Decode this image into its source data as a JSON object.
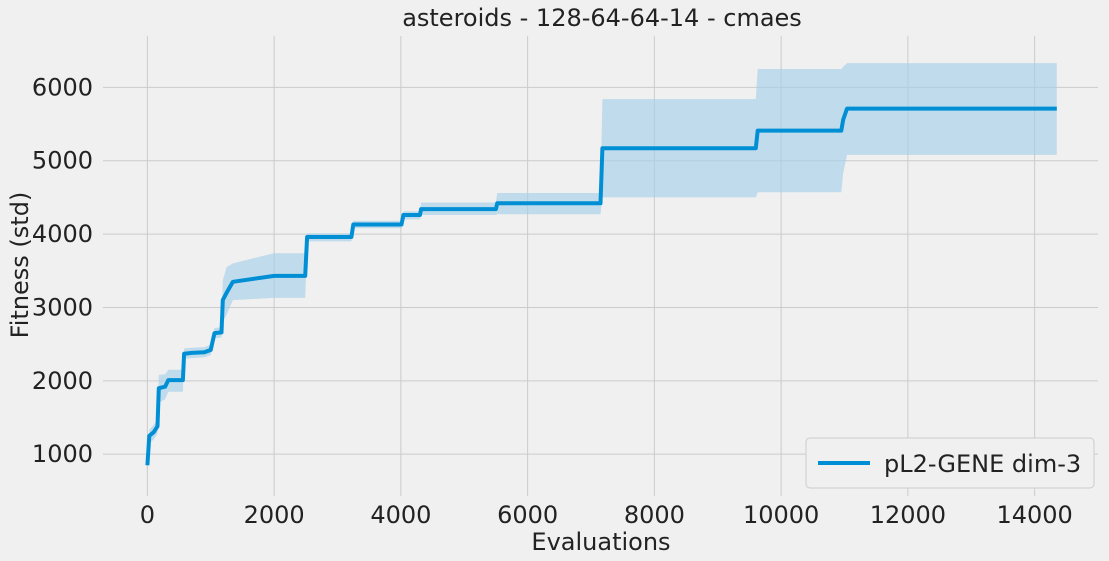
{
  "chart_data": {
    "type": "line",
    "title": "asteroids - 128-64-64-14 - cmaes",
    "xlabel": "Evaluations",
    "ylabel": "Fitness (std)",
    "xlim": [
      -700,
      15000
    ],
    "ylim": [
      430,
      6700
    ],
    "xticks": [
      0,
      2000,
      4000,
      6000,
      8000,
      10000,
      12000,
      14000
    ],
    "yticks": [
      1000,
      2000,
      3000,
      4000,
      5000,
      6000
    ],
    "grid": true,
    "legend_position": "bottom-right",
    "colors": {
      "line": "#008fd5",
      "band": "#a6d0e8",
      "background": "#f0f0f0",
      "grid": "#cbcbcb"
    },
    "series": [
      {
        "name": "pL2-GENE dim-3",
        "shaded": "mean ± std",
        "points": [
          [
            0,
            850,
            850,
            850
          ],
          [
            30,
            1250,
            1150,
            1330
          ],
          [
            100,
            1300,
            1200,
            1400
          ],
          [
            160,
            1380,
            1280,
            1470
          ],
          [
            180,
            1900,
            1700,
            2080
          ],
          [
            280,
            1920,
            1750,
            2090
          ],
          [
            330,
            2010,
            1850,
            2150
          ],
          [
            560,
            2010,
            1850,
            2150
          ],
          [
            580,
            2370,
            2300,
            2440
          ],
          [
            700,
            2380,
            2310,
            2450
          ],
          [
            900,
            2390,
            2320,
            2460
          ],
          [
            1000,
            2420,
            2350,
            2490
          ],
          [
            1060,
            2650,
            2580,
            2720
          ],
          [
            1170,
            2660,
            2590,
            2730
          ],
          [
            1190,
            3100,
            2800,
            3370
          ],
          [
            1250,
            3200,
            2900,
            3550
          ],
          [
            1350,
            3350,
            3100,
            3600
          ],
          [
            2000,
            3430,
            3130,
            3740
          ],
          [
            2490,
            3430,
            3130,
            3740
          ],
          [
            2520,
            3960,
            3900,
            4010
          ],
          [
            3220,
            3960,
            3900,
            4010
          ],
          [
            3250,
            4130,
            4080,
            4180
          ],
          [
            4010,
            4130,
            4080,
            4180
          ],
          [
            4040,
            4260,
            4200,
            4310
          ],
          [
            4300,
            4260,
            4200,
            4310
          ],
          [
            4320,
            4340,
            4260,
            4430
          ],
          [
            5500,
            4340,
            4260,
            4430
          ],
          [
            5520,
            4420,
            4270,
            4560
          ],
          [
            7150,
            4420,
            4270,
            4560
          ],
          [
            7180,
            5170,
            4500,
            5840
          ],
          [
            9600,
            5170,
            4500,
            5840
          ],
          [
            9630,
            5410,
            4570,
            6250
          ],
          [
            10950,
            5410,
            4570,
            6250
          ],
          [
            10980,
            5560,
            4830,
            6280
          ],
          [
            11040,
            5710,
            5080,
            6330
          ],
          [
            14350,
            5710,
            5080,
            6330
          ]
        ]
      }
    ]
  }
}
